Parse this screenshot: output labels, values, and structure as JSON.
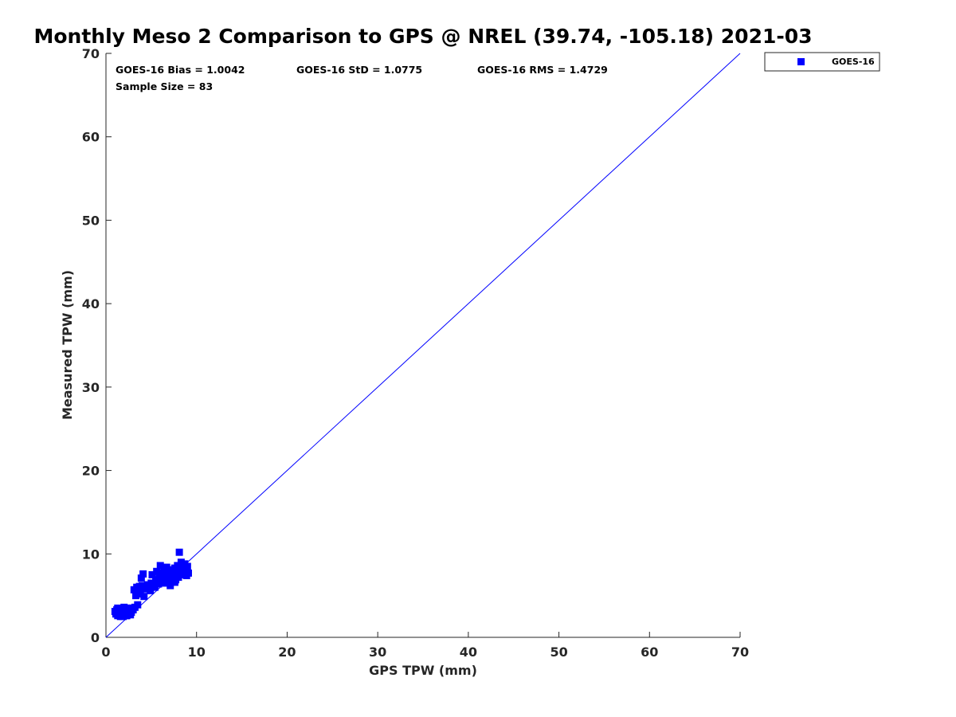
{
  "chart_data": {
    "type": "scatter",
    "title": "Monthly Meso 2 Comparison to GPS @ NREL (39.74, -105.18) 2021-03",
    "xlabel": "GPS TPW (mm)",
    "ylabel": "Measured TPW (mm)",
    "xlim": [
      0,
      70
    ],
    "ylim": [
      0,
      70
    ],
    "xticks": [
      0,
      10,
      20,
      30,
      40,
      50,
      60,
      70
    ],
    "yticks": [
      0,
      10,
      20,
      30,
      40,
      50,
      60,
      70
    ],
    "grid": false,
    "legend_position": "top-right outside",
    "stats": [
      "GOES-16 Bias = 1.0042",
      "GOES-16 StD = 1.0775",
      "GOES-16 RMS = 1.4729",
      "Sample Size = 83"
    ],
    "reference_line": {
      "x": [
        0,
        70
      ],
      "y": [
        0,
        70
      ],
      "color": "#0000ff"
    },
    "series": [
      {
        "name": "GOES-16",
        "color": "#0000ff",
        "marker": "square",
        "points": [
          [
            1.0,
            3.1
          ],
          [
            1.1,
            2.8
          ],
          [
            1.2,
            3.3
          ],
          [
            1.3,
            2.6
          ],
          [
            1.4,
            3.0
          ],
          [
            1.5,
            2.9
          ],
          [
            1.6,
            3.4
          ],
          [
            1.7,
            2.7
          ],
          [
            1.8,
            3.2
          ],
          [
            1.9,
            2.5
          ],
          [
            2.0,
            3.6
          ],
          [
            2.1,
            2.9
          ],
          [
            2.2,
            3.1
          ],
          [
            2.3,
            2.6
          ],
          [
            2.4,
            3.5
          ],
          [
            2.5,
            2.8
          ],
          [
            2.6,
            3.2
          ],
          [
            2.7,
            2.7
          ],
          [
            2.8,
            3.0
          ],
          [
            3.0,
            3.3
          ],
          [
            3.2,
            3.6
          ],
          [
            3.5,
            3.9
          ],
          [
            3.1,
            5.7
          ],
          [
            3.4,
            6.0
          ],
          [
            3.6,
            5.2
          ],
          [
            3.8,
            5.5
          ],
          [
            3.9,
            7.1
          ],
          [
            4.0,
            6.2
          ],
          [
            4.1,
            7.6
          ],
          [
            4.2,
            4.9
          ],
          [
            4.4,
            5.8
          ],
          [
            4.6,
            6.3
          ],
          [
            4.8,
            6.0
          ],
          [
            5.0,
            6.5
          ],
          [
            5.1,
            7.5
          ],
          [
            5.3,
            6.1
          ],
          [
            5.5,
            6.9
          ],
          [
            5.6,
            7.9
          ],
          [
            5.8,
            6.4
          ],
          [
            5.9,
            7.2
          ],
          [
            6.0,
            8.6
          ],
          [
            6.1,
            6.6
          ],
          [
            6.2,
            7.7
          ],
          [
            6.3,
            6.8
          ],
          [
            6.4,
            8.0
          ],
          [
            6.5,
            7.1
          ],
          [
            6.6,
            6.5
          ],
          [
            6.7,
            8.4
          ],
          [
            6.8,
            7.3
          ],
          [
            6.9,
            6.9
          ],
          [
            7.0,
            7.8
          ],
          [
            7.1,
            6.2
          ],
          [
            7.2,
            7.0
          ],
          [
            7.3,
            8.1
          ],
          [
            7.4,
            6.7
          ],
          [
            7.5,
            7.4
          ],
          [
            7.6,
            8.3
          ],
          [
            7.7,
            6.9
          ],
          [
            7.8,
            7.6
          ],
          [
            7.9,
            8.6
          ],
          [
            8.0,
            7.2
          ],
          [
            8.1,
            10.2
          ],
          [
            8.2,
            8.0
          ],
          [
            8.3,
            9.0
          ],
          [
            8.4,
            7.5
          ],
          [
            8.5,
            8.4
          ],
          [
            8.6,
            7.8
          ],
          [
            8.7,
            8.8
          ],
          [
            8.8,
            8.2
          ],
          [
            8.9,
            7.4
          ],
          [
            9.0,
            8.5
          ],
          [
            9.1,
            7.7
          ],
          [
            5.4,
            6.0
          ],
          [
            4.9,
            5.6
          ],
          [
            6.3,
            7.4
          ],
          [
            7.6,
            6.6
          ],
          [
            3.3,
            5.0
          ],
          [
            2.9,
            3.5
          ],
          [
            1.6,
            2.5
          ],
          [
            2.2,
            2.6
          ],
          [
            1.3,
            3.5
          ],
          [
            3.7,
            6.1
          ],
          [
            5.7,
            6.8
          ]
        ]
      }
    ]
  }
}
